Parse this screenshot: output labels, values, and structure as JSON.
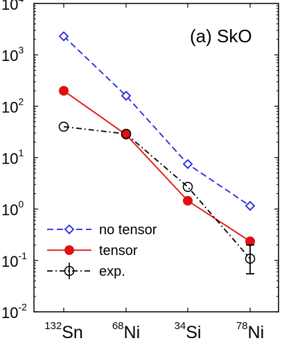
{
  "chart_data": {
    "type": "line",
    "title": "(a) SkO",
    "categories": [
      {
        "mass": "132",
        "element": "Sn"
      },
      {
        "mass": "68",
        "element": "Ni"
      },
      {
        "mass": "34",
        "element": "Si"
      },
      {
        "mass": "78",
        "element": "Ni"
      }
    ],
    "y_scale": "log",
    "ylim": [
      0.01,
      10000
    ],
    "y_ticks": [
      {
        "base": "10",
        "exp": "4",
        "value": 10000
      },
      {
        "base": "10",
        "exp": "3",
        "value": 1000
      },
      {
        "base": "10",
        "exp": "2",
        "value": 100
      },
      {
        "base": "10",
        "exp": "1",
        "value": 10
      },
      {
        "base": "10",
        "exp": "0",
        "value": 1
      },
      {
        "base": "10",
        "exp": "-1",
        "value": 0.1
      },
      {
        "base": "10",
        "exp": "-2",
        "value": 0.01
      }
    ],
    "grid": false,
    "legend_position": "bottom-left",
    "series": [
      {
        "name": "no tensor",
        "color": "#2323e0",
        "line_style": "dashed",
        "marker": "open-diamond",
        "values": [
          2300,
          160,
          7.5,
          1.15
        ]
      },
      {
        "name": "tensor",
        "color": "#e01010",
        "line_style": "solid",
        "marker": "filled-circle",
        "values": [
          200,
          28,
          1.45,
          0.235
        ]
      },
      {
        "name": "exp.",
        "color": "#000000",
        "line_style": "dash-dot",
        "marker": "open-circle-errorbar",
        "values": [
          40,
          29,
          2.7,
          0.108
        ],
        "error_low": [
          null,
          null,
          null,
          0.055
        ],
        "error_high": [
          null,
          null,
          null,
          0.2
        ]
      }
    ]
  }
}
